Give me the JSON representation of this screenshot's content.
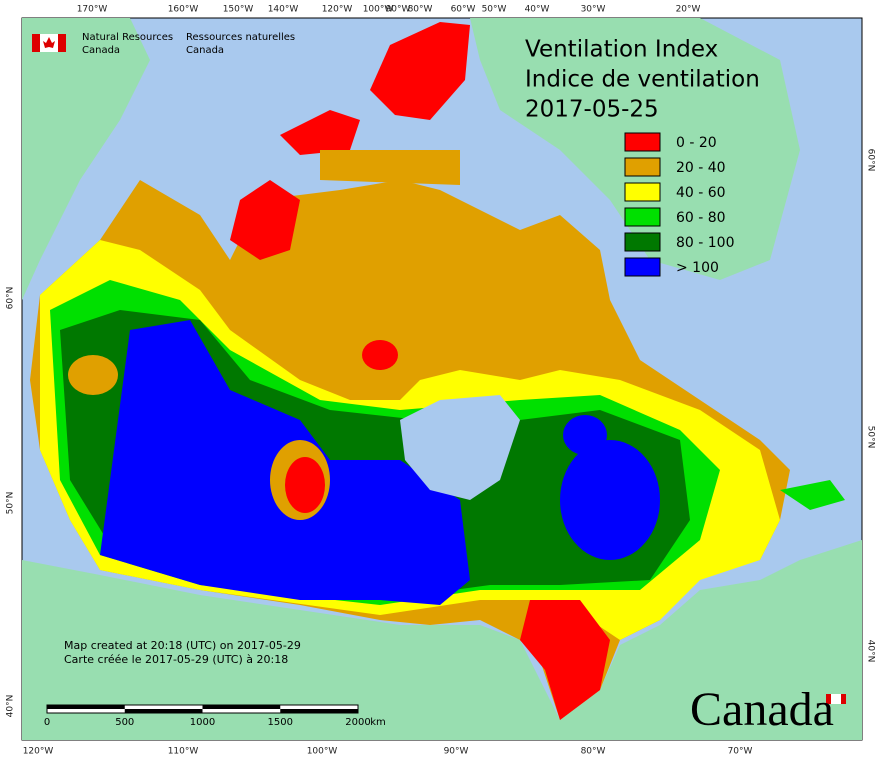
{
  "header": {
    "title": [
      "Ventilation Index",
      "Indice de ventilation",
      "2017-05-25"
    ],
    "agency": {
      "en": [
        "Natural Resources",
        "Canada"
      ],
      "fr": [
        "Ressources naturelles",
        "Canada"
      ]
    }
  },
  "legend": [
    {
      "label": "0 - 20",
      "color": "#ff0000"
    },
    {
      "label": "20 - 40",
      "color": "#e0a000"
    },
    {
      "label": "40 - 60",
      "color": "#ffff00"
    },
    {
      "label": "60 - 80",
      "color": "#00e000"
    },
    {
      "label": "80 - 100",
      "color": "#007800"
    },
    {
      "label": "> 100",
      "color": "#0000ff"
    }
  ],
  "notes": [
    "Map created at 20:18 (UTC) on 2017-05-29",
    "Carte créée le 2017-05-29 (UTC) à 20:18"
  ],
  "scale": {
    "ticks": [
      0,
      500,
      1000,
      1500,
      2000
    ],
    "unit": "km"
  },
  "graticule": {
    "top": [
      "170°W",
      "160°W",
      "150°W",
      "140°W",
      "120°W",
      "100°W",
      "90°W",
      "80°W",
      "60°W",
      "50°W",
      "40°W",
      "30°W",
      "20°W"
    ],
    "bottom": [
      "120°W",
      "110°W",
      "100°W",
      "90°W",
      "80°W",
      "70°W"
    ],
    "left": [
      "60°N",
      "50°N",
      "40°N"
    ],
    "right": [
      "60°N",
      "50°N",
      "40°N"
    ]
  },
  "wordmark": "Canada"
}
